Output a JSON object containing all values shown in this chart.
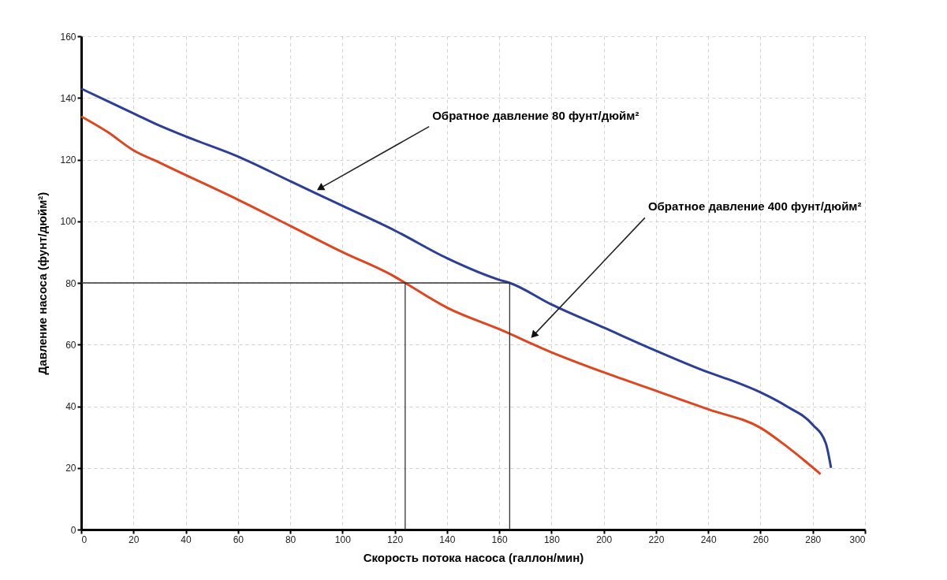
{
  "chart_data": {
    "type": "line",
    "xlabel": "Скорость потока насоса (галлон/мин)",
    "ylabel": "Давление насоса (фунт/дюйм²)",
    "xlim": [
      0,
      300
    ],
    "xticks": [
      0,
      20,
      40,
      60,
      80,
      100,
      120,
      140,
      160,
      180,
      200,
      220,
      240,
      260,
      280,
      300
    ],
    "ylim": [
      0,
      160
    ],
    "yticks": [
      0,
      20,
      40,
      60,
      80,
      100,
      120,
      140,
      160
    ],
    "grid": true,
    "line_style": "solid",
    "series": [
      {
        "color": "#2b3f98",
        "x": [
          0,
          20,
          30,
          40,
          60,
          80,
          100,
          120,
          140,
          160,
          164,
          180,
          200,
          220,
          240,
          250,
          260,
          270,
          280,
          285,
          287
        ],
        "values": [
          143,
          135,
          131,
          127.5,
          121,
          113,
          105,
          97,
          88,
          81,
          80,
          73,
          65.5,
          58,
          51,
          48,
          44.5,
          40,
          34,
          28,
          20
        ]
      },
      {
        "color": "#e0461e",
        "x": [
          0,
          10,
          20,
          30,
          40,
          60,
          80,
          100,
          120,
          124,
          140,
          160,
          180,
          200,
          220,
          240,
          260,
          270,
          283
        ],
        "values": [
          134,
          129,
          123,
          119,
          115,
          107,
          98.5,
          90,
          82,
          80,
          72,
          65,
          57.5,
          51,
          45,
          39,
          33,
          27,
          18
        ]
      },
      {
        "color": "#333333",
        "x": [
          0,
          164,
          164
        ],
        "values": [
          80,
          80,
          0
        ]
      },
      {
        "color": "#333333",
        "x": [
          124,
          124
        ],
        "values": [
          80,
          0
        ]
      }
    ],
    "annotations": [
      {
        "text": "Обратное давление 80 фунт/дюйм²",
        "x": 90,
        "y": 110
      },
      {
        "text": "Обратное давление 400 фунт/дюйм²",
        "x": 172,
        "y": 62
      }
    ]
  }
}
